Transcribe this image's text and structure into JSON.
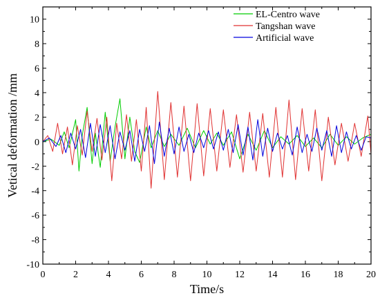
{
  "chart_data": {
    "type": "line",
    "xlabel": "Time/s",
    "ylabel": "Vetical deformation /mm",
    "xlim": [
      0,
      20
    ],
    "ylim": [
      -10,
      11
    ],
    "xticks": [
      "0",
      "2",
      "4",
      "6",
      "8",
      "10",
      "12",
      "14",
      "16",
      "18",
      "20"
    ],
    "yticks": [
      "-10",
      "-8",
      "-6",
      "-4",
      "-2",
      "0",
      "2",
      "4",
      "6",
      "8",
      "10"
    ],
    "grid": false,
    "legend_position": "top-right",
    "series": [
      {
        "name": "EL-Centro wave",
        "color": "#00cc00",
        "x": [
          0.0,
          0.5,
          1.0,
          1.3,
          1.6,
          2.0,
          2.2,
          2.4,
          2.7,
          3.0,
          3.2,
          3.5,
          3.8,
          4.1,
          4.4,
          4.7,
          5.0,
          5.3,
          5.6,
          5.9,
          6.3,
          6.6,
          7.0,
          7.4,
          7.8,
          8.3,
          8.8,
          9.3,
          9.8,
          10.2,
          10.6,
          11.0,
          11.5,
          12.0,
          12.5,
          13.0,
          13.5,
          14.0,
          14.5,
          15.0,
          15.5,
          16.0,
          16.5,
          17.0,
          17.5,
          18.0,
          18.5,
          19.0,
          19.5,
          20.0
        ],
        "y": [
          0.0,
          0.2,
          -0.3,
          0.8,
          -0.5,
          1.8,
          -2.4,
          0.5,
          2.8,
          -1.8,
          0.7,
          -2.1,
          2.4,
          -1.6,
          1.2,
          3.5,
          -1.4,
          2.0,
          -0.8,
          -1.7,
          1.2,
          -0.5,
          0.9,
          -0.4,
          0.6,
          -0.3,
          1.1,
          -0.5,
          0.9,
          -0.2,
          0.7,
          -0.3,
          0.8,
          -1.4,
          0.6,
          -0.7,
          0.9,
          -0.5,
          0.4,
          -0.2,
          0.5,
          -0.4,
          0.3,
          -0.5,
          0.6,
          -0.3,
          0.4,
          -0.2,
          0.3,
          0.6
        ]
      },
      {
        "name": "Tangshan wave",
        "color": "#e03030",
        "x": [
          0.0,
          0.3,
          0.6,
          0.9,
          1.2,
          1.5,
          1.8,
          2.1,
          2.4,
          2.7,
          3.0,
          3.3,
          3.6,
          3.9,
          4.2,
          4.5,
          4.8,
          5.1,
          5.4,
          5.7,
          6.0,
          6.3,
          6.6,
          7.0,
          7.4,
          7.8,
          8.2,
          8.6,
          9.0,
          9.4,
          9.8,
          10.2,
          10.6,
          11.0,
          11.4,
          11.8,
          12.2,
          12.6,
          13.0,
          13.4,
          13.8,
          14.2,
          14.6,
          15.0,
          15.4,
          15.8,
          16.2,
          16.6,
          17.0,
          17.4,
          17.8,
          18.2,
          18.6,
          19.0,
          19.4,
          19.8,
          20.0
        ],
        "y": [
          0.0,
          0.5,
          -0.8,
          1.5,
          -1.0,
          1.2,
          -1.9,
          1.3,
          -1.1,
          2.5,
          -0.8,
          1.9,
          -1.5,
          2.0,
          -3.2,
          1.5,
          -1.4,
          2.2,
          -1.6,
          1.8,
          -2.4,
          2.8,
          -3.8,
          4.1,
          -3.1,
          3.2,
          -2.9,
          2.9,
          -3.2,
          3.1,
          -2.8,
          2.7,
          -2.4,
          2.6,
          -2.1,
          2.2,
          -2.5,
          2.4,
          -2.4,
          2.3,
          -2.9,
          2.8,
          -2.9,
          3.4,
          -3.1,
          2.7,
          -2.4,
          2.6,
          -3.2,
          2.0,
          -1.9,
          1.5,
          -1.6,
          1.5,
          -1.2,
          2.1,
          -1.0
        ]
      },
      {
        "name": "Artificial wave",
        "color": "#0000dd",
        "x": [
          0.0,
          0.4,
          0.8,
          1.1,
          1.4,
          1.7,
          2.0,
          2.3,
          2.6,
          2.9,
          3.2,
          3.5,
          3.8,
          4.1,
          4.4,
          4.7,
          5.0,
          5.3,
          5.6,
          5.9,
          6.2,
          6.5,
          6.8,
          7.1,
          7.4,
          7.7,
          8.0,
          8.3,
          8.6,
          8.9,
          9.2,
          9.5,
          9.8,
          10.1,
          10.4,
          10.7,
          11.0,
          11.3,
          11.6,
          11.9,
          12.2,
          12.5,
          12.8,
          13.1,
          13.4,
          13.7,
          14.0,
          14.3,
          14.6,
          14.9,
          15.2,
          15.5,
          15.8,
          16.1,
          16.4,
          16.7,
          17.0,
          17.3,
          17.6,
          17.9,
          18.2,
          18.5,
          18.8,
          19.1,
          19.4,
          19.7,
          20.0
        ],
        "y": [
          0.0,
          0.3,
          -0.4,
          0.5,
          -0.9,
          0.7,
          -0.6,
          1.0,
          -1.3,
          1.5,
          -1.2,
          1.4,
          -0.9,
          1.3,
          -1.4,
          0.8,
          -0.7,
          0.9,
          -1.6,
          1.0,
          -0.8,
          1.3,
          -1.8,
          1.6,
          -1.2,
          1.1,
          -1.0,
          1.2,
          -0.8,
          0.6,
          -0.9,
          0.7,
          -0.5,
          0.9,
          -0.6,
          0.8,
          -0.7,
          1.0,
          -0.9,
          1.4,
          -1.1,
          1.2,
          -1.5,
          1.8,
          -1.2,
          1.1,
          -0.8,
          0.7,
          -0.6,
          0.5,
          -1.1,
          1.2,
          -0.9,
          0.6,
          -0.8,
          1.1,
          -0.7,
          0.9,
          -1.2,
          1.3,
          -0.9,
          0.8,
          -0.6,
          0.5,
          -0.7,
          0.4,
          0.3
        ]
      }
    ]
  }
}
